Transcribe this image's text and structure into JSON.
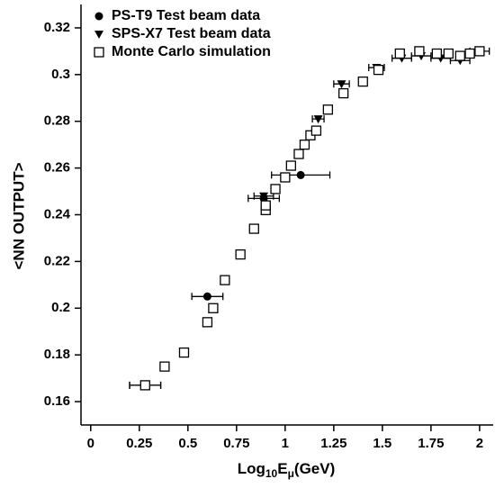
{
  "chart_data": {
    "type": "scatter",
    "xlabel": [
      "Log",
      "10",
      "E",
      "μ",
      "(GeV)"
    ],
    "ylabel": "<NN OUTPUT>",
    "xlim": [
      -0.05,
      2.07
    ],
    "ylim": [
      0.15,
      0.33
    ],
    "xticks": [
      0,
      0.25,
      0.5,
      0.75,
      1,
      1.25,
      1.5,
      1.75,
      2
    ],
    "yticks": [
      0.16,
      0.18,
      0.2,
      0.22,
      0.24,
      0.26,
      0.28,
      0.3,
      0.32
    ],
    "legend": "upper left",
    "series": [
      {
        "name": "PS-T9 Test beam data",
        "marker": "circle",
        "color": "#000000",
        "x": [
          0.28,
          0.6,
          0.89,
          1.08,
          2.0
        ],
        "values": [
          0.167,
          0.205,
          0.247,
          0.257,
          0.31
        ],
        "xerr": [
          0.08,
          0.08,
          0.08,
          0.15,
          0.02
        ]
      },
      {
        "name": "SPS-X7 Test beam data",
        "marker": "triangle",
        "color": "#000000",
        "x": [
          0.28,
          0.89,
          1.17,
          1.29,
          1.47,
          1.6,
          1.7,
          1.8,
          1.9,
          2.0
        ],
        "values": [
          0.167,
          0.248,
          0.281,
          0.296,
          0.303,
          0.307,
          0.308,
          0.307,
          0.306,
          0.31
        ],
        "xerr": [
          0.08,
          0.05,
          0.03,
          0.04,
          0.04,
          0.05,
          0.05,
          0.05,
          0.05,
          0.05
        ]
      },
      {
        "name": "Monte Carlo simulation",
        "marker": "square",
        "color": "#000000",
        "x": [
          0.28,
          0.38,
          0.48,
          0.6,
          0.63,
          0.69,
          0.77,
          0.84,
          0.9,
          0.9,
          0.95,
          1.0,
          1.03,
          1.07,
          1.1,
          1.13,
          1.16,
          1.22,
          1.3,
          1.4,
          1.48,
          1.59,
          1.69,
          1.78,
          1.84,
          1.9,
          1.95,
          2.0
        ],
        "values": [
          0.167,
          0.175,
          0.181,
          0.194,
          0.2,
          0.212,
          0.223,
          0.234,
          0.242,
          0.244,
          0.251,
          0.256,
          0.261,
          0.266,
          0.27,
          0.274,
          0.276,
          0.285,
          0.292,
          0.297,
          0.302,
          0.309,
          0.31,
          0.309,
          0.309,
          0.308,
          0.309,
          0.31
        ]
      }
    ]
  }
}
